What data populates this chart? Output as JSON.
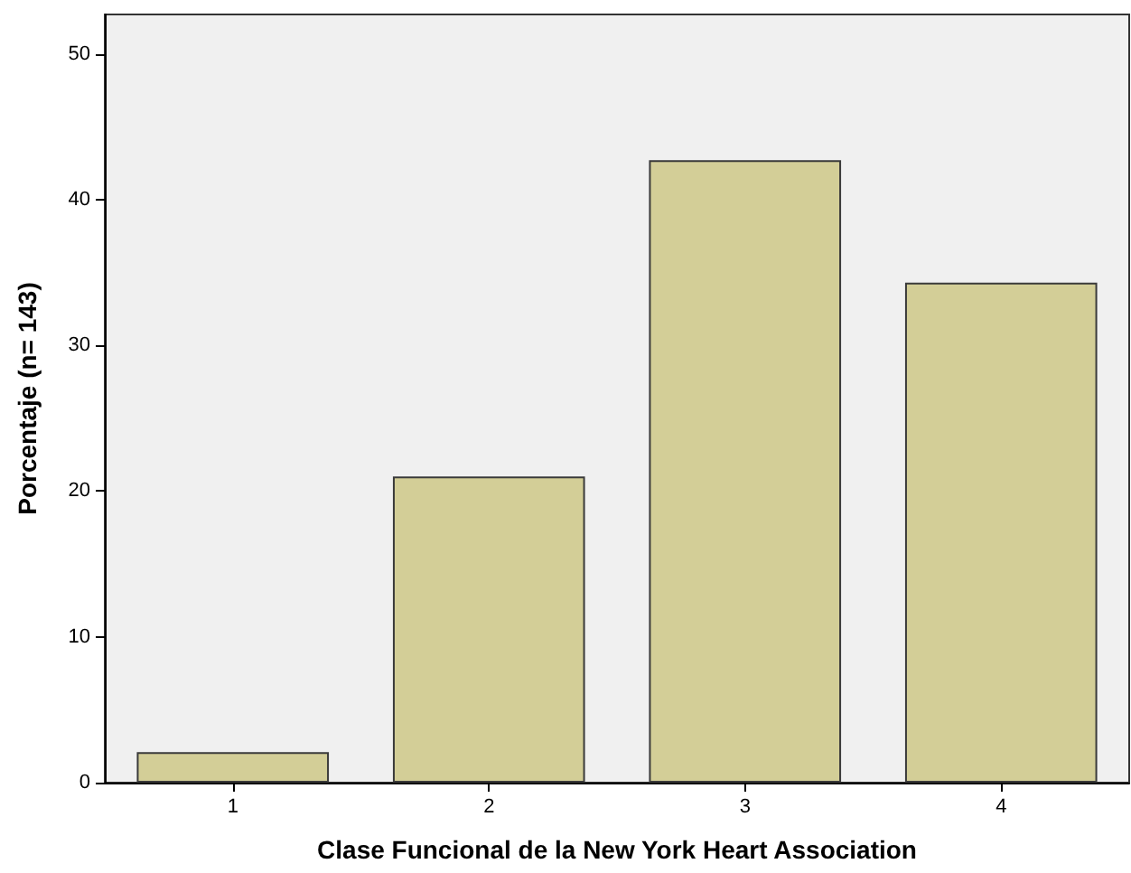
{
  "chart_data": {
    "type": "bar",
    "xlabel": "Clase Funcional de la New York Heart Association",
    "ylabel": "Porcentaje (n= 143)",
    "categories": [
      "1",
      "2",
      "3",
      "4"
    ],
    "values": [
      2.1,
      21.0,
      42.7,
      34.3
    ],
    "color": "#d3ce97",
    "ylim": [
      0,
      52.7
    ],
    "yticks": [
      0,
      10,
      20,
      30,
      40,
      50
    ],
    "grid": false
  }
}
